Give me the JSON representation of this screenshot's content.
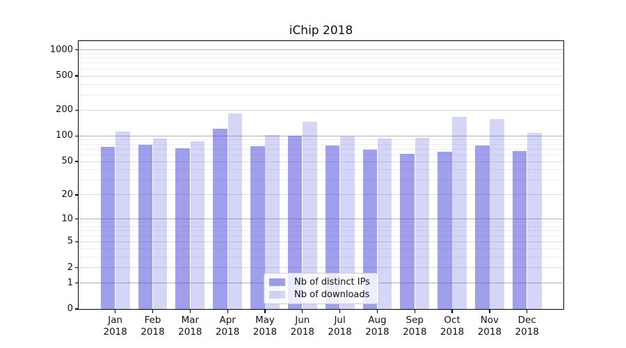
{
  "chart_data": {
    "type": "bar",
    "title": "iChip 2018",
    "categories": [
      "Jan 2018",
      "Feb 2018",
      "Mar 2018",
      "Apr 2018",
      "May 2018",
      "Jun 2018",
      "Jul 2018",
      "Aug 2018",
      "Sep 2018",
      "Oct 2018",
      "Nov 2018",
      "Dec 2018"
    ],
    "series": [
      {
        "key": "distinct-ips",
        "name": "Nb of distinct IPs",
        "color": "rgba(80,80,220,0.55)",
        "values": [
          75,
          79,
          72,
          121,
          76,
          100,
          78,
          69,
          62,
          65,
          78,
          66
        ]
      },
      {
        "key": "downloads",
        "name": "Nb of downloads",
        "color": "rgba(80,80,220,0.24)",
        "values": [
          112,
          93,
          87,
          184,
          102,
          147,
          99,
          94,
          95,
          167,
          157,
          108
        ]
      }
    ],
    "yscale": {
      "type": "log1p",
      "ylim": [
        0,
        1267
      ]
    },
    "y_ticks": [
      0,
      1,
      2,
      5,
      10,
      20,
      50,
      100,
      200,
      500,
      1000
    ],
    "y_tick_labels": [
      "0",
      "1",
      "2",
      "5",
      "10",
      "20",
      "50",
      "100",
      "200",
      "500",
      "1000"
    ],
    "y_major_grid_values": [
      1,
      10,
      100,
      1000
    ],
    "y_minor_ticks": [
      3,
      4,
      6,
      7,
      8,
      9,
      30,
      40,
      60,
      70,
      80,
      90,
      300,
      400,
      600,
      700,
      800,
      900
    ],
    "grid": {
      "major_color": "#b0b0b0",
      "labeled_minor_color": "#d9d9d9",
      "minor_color": "#ededed"
    },
    "legend": {
      "position": "lower center",
      "items": [
        "Nb of distinct IPs",
        "Nb of downloads"
      ]
    },
    "xlabel": "",
    "ylabel": ""
  }
}
